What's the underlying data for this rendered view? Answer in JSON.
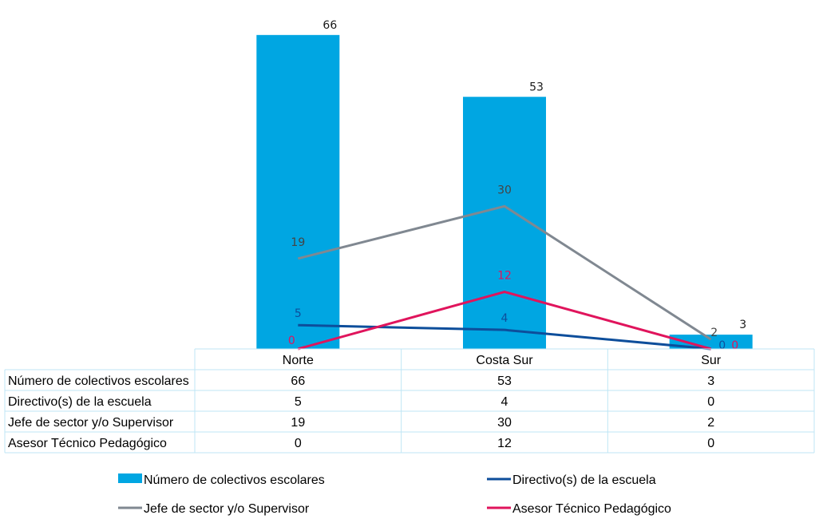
{
  "chart_data": {
    "type": "bar",
    "categories": [
      "Norte",
      "Costa Sur",
      "Sur"
    ],
    "ylim": [
      0,
      70
    ],
    "series": [
      {
        "name": "Número de colectivos escolares",
        "kind": "bar",
        "color": "#00A6E2",
        "label_color": "#1a1a1a",
        "values": [
          66,
          53,
          3
        ]
      },
      {
        "name": "Directivo(s) de la escuela",
        "kind": "line",
        "color": "#0D4E9B",
        "label_color": "#0D4E9B",
        "values": [
          5,
          4,
          0
        ]
      },
      {
        "name": "Jefe de sector y/o Supervisor",
        "kind": "line",
        "color": "#808891",
        "label_color": "#444444",
        "values": [
          19,
          30,
          2
        ]
      },
      {
        "name": "Asesor Técnico Pedagógico",
        "kind": "line",
        "color": "#E0145C",
        "label_color": "#E0145C",
        "values": [
          0,
          12,
          0
        ]
      }
    ],
    "data_table": true,
    "legend_position": "bottom"
  }
}
